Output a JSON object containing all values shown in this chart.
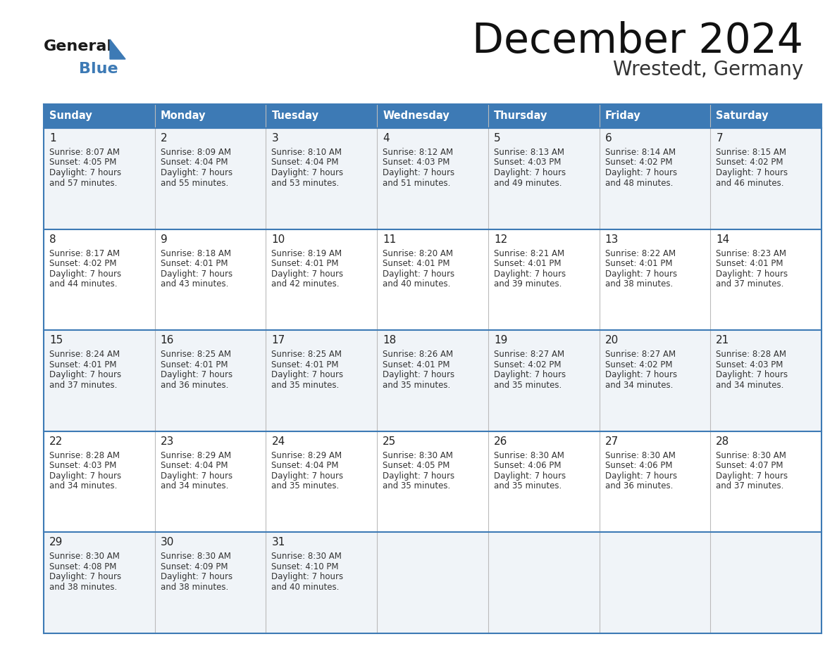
{
  "title": "December 2024",
  "subtitle": "Wrestedt, Germany",
  "days_of_week": [
    "Sunday",
    "Monday",
    "Tuesday",
    "Wednesday",
    "Thursday",
    "Friday",
    "Saturday"
  ],
  "header_bg": "#3d7ab5",
  "header_text": "#ffffff",
  "cell_bg_odd": "#f0f4f8",
  "cell_bg_even": "#ffffff",
  "cell_text": "#333333",
  "border_color": "#3d7ab5",
  "num_rows": 5,
  "num_cols": 7,
  "calendar": [
    [
      {
        "day": 1,
        "sunrise": "8:07 AM",
        "sunset": "4:05 PM",
        "daylight_h": "7 hours",
        "daylight_m": "57 minutes"
      },
      {
        "day": 2,
        "sunrise": "8:09 AM",
        "sunset": "4:04 PM",
        "daylight_h": "7 hours",
        "daylight_m": "55 minutes"
      },
      {
        "day": 3,
        "sunrise": "8:10 AM",
        "sunset": "4:04 PM",
        "daylight_h": "7 hours",
        "daylight_m": "53 minutes"
      },
      {
        "day": 4,
        "sunrise": "8:12 AM",
        "sunset": "4:03 PM",
        "daylight_h": "7 hours",
        "daylight_m": "51 minutes"
      },
      {
        "day": 5,
        "sunrise": "8:13 AM",
        "sunset": "4:03 PM",
        "daylight_h": "7 hours",
        "daylight_m": "49 minutes"
      },
      {
        "day": 6,
        "sunrise": "8:14 AM",
        "sunset": "4:02 PM",
        "daylight_h": "7 hours",
        "daylight_m": "48 minutes"
      },
      {
        "day": 7,
        "sunrise": "8:15 AM",
        "sunset": "4:02 PM",
        "daylight_h": "7 hours",
        "daylight_m": "46 minutes"
      }
    ],
    [
      {
        "day": 8,
        "sunrise": "8:17 AM",
        "sunset": "4:02 PM",
        "daylight_h": "7 hours",
        "daylight_m": "44 minutes"
      },
      {
        "day": 9,
        "sunrise": "8:18 AM",
        "sunset": "4:01 PM",
        "daylight_h": "7 hours",
        "daylight_m": "43 minutes"
      },
      {
        "day": 10,
        "sunrise": "8:19 AM",
        "sunset": "4:01 PM",
        "daylight_h": "7 hours",
        "daylight_m": "42 minutes"
      },
      {
        "day": 11,
        "sunrise": "8:20 AM",
        "sunset": "4:01 PM",
        "daylight_h": "7 hours",
        "daylight_m": "40 minutes"
      },
      {
        "day": 12,
        "sunrise": "8:21 AM",
        "sunset": "4:01 PM",
        "daylight_h": "7 hours",
        "daylight_m": "39 minutes"
      },
      {
        "day": 13,
        "sunrise": "8:22 AM",
        "sunset": "4:01 PM",
        "daylight_h": "7 hours",
        "daylight_m": "38 minutes"
      },
      {
        "day": 14,
        "sunrise": "8:23 AM",
        "sunset": "4:01 PM",
        "daylight_h": "7 hours",
        "daylight_m": "37 minutes"
      }
    ],
    [
      {
        "day": 15,
        "sunrise": "8:24 AM",
        "sunset": "4:01 PM",
        "daylight_h": "7 hours",
        "daylight_m": "37 minutes"
      },
      {
        "day": 16,
        "sunrise": "8:25 AM",
        "sunset": "4:01 PM",
        "daylight_h": "7 hours",
        "daylight_m": "36 minutes"
      },
      {
        "day": 17,
        "sunrise": "8:25 AM",
        "sunset": "4:01 PM",
        "daylight_h": "7 hours",
        "daylight_m": "35 minutes"
      },
      {
        "day": 18,
        "sunrise": "8:26 AM",
        "sunset": "4:01 PM",
        "daylight_h": "7 hours",
        "daylight_m": "35 minutes"
      },
      {
        "day": 19,
        "sunrise": "8:27 AM",
        "sunset": "4:02 PM",
        "daylight_h": "7 hours",
        "daylight_m": "35 minutes"
      },
      {
        "day": 20,
        "sunrise": "8:27 AM",
        "sunset": "4:02 PM",
        "daylight_h": "7 hours",
        "daylight_m": "34 minutes"
      },
      {
        "day": 21,
        "sunrise": "8:28 AM",
        "sunset": "4:03 PM",
        "daylight_h": "7 hours",
        "daylight_m": "34 minutes"
      }
    ],
    [
      {
        "day": 22,
        "sunrise": "8:28 AM",
        "sunset": "4:03 PM",
        "daylight_h": "7 hours",
        "daylight_m": "34 minutes"
      },
      {
        "day": 23,
        "sunrise": "8:29 AM",
        "sunset": "4:04 PM",
        "daylight_h": "7 hours",
        "daylight_m": "34 minutes"
      },
      {
        "day": 24,
        "sunrise": "8:29 AM",
        "sunset": "4:04 PM",
        "daylight_h": "7 hours",
        "daylight_m": "35 minutes"
      },
      {
        "day": 25,
        "sunrise": "8:30 AM",
        "sunset": "4:05 PM",
        "daylight_h": "7 hours",
        "daylight_m": "35 minutes"
      },
      {
        "day": 26,
        "sunrise": "8:30 AM",
        "sunset": "4:06 PM",
        "daylight_h": "7 hours",
        "daylight_m": "35 minutes"
      },
      {
        "day": 27,
        "sunrise": "8:30 AM",
        "sunset": "4:06 PM",
        "daylight_h": "7 hours",
        "daylight_m": "36 minutes"
      },
      {
        "day": 28,
        "sunrise": "8:30 AM",
        "sunset": "4:07 PM",
        "daylight_h": "7 hours",
        "daylight_m": "37 minutes"
      }
    ],
    [
      {
        "day": 29,
        "sunrise": "8:30 AM",
        "sunset": "4:08 PM",
        "daylight_h": "7 hours",
        "daylight_m": "38 minutes"
      },
      {
        "day": 30,
        "sunrise": "8:30 AM",
        "sunset": "4:09 PM",
        "daylight_h": "7 hours",
        "daylight_m": "38 minutes"
      },
      {
        "day": 31,
        "sunrise": "8:30 AM",
        "sunset": "4:10 PM",
        "daylight_h": "7 hours",
        "daylight_m": "40 minutes"
      },
      null,
      null,
      null,
      null
    ]
  ],
  "logo_text_general": "General",
  "logo_text_blue": "Blue",
  "logo_triangle_color": "#3d7ab5",
  "logo_general_color": "#1a1a1a"
}
